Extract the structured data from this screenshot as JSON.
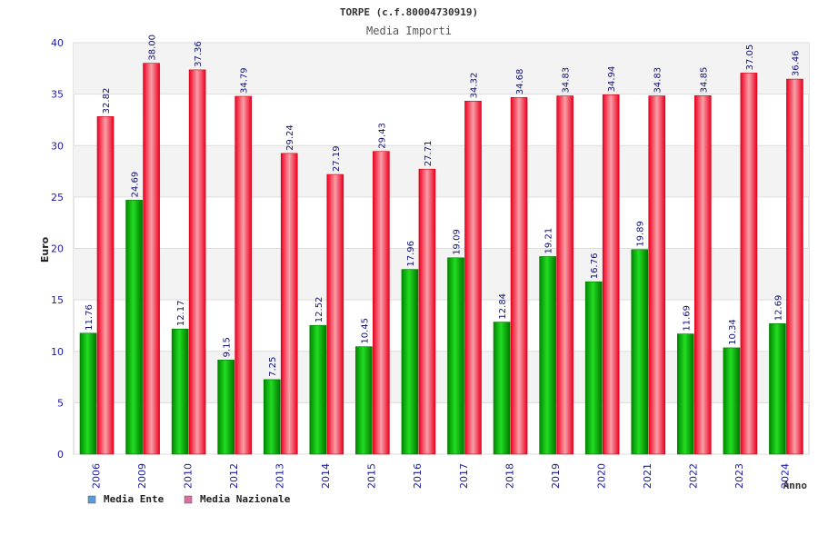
{
  "chart_data": {
    "type": "bar",
    "title": "TORPE (c.f.80004730919)",
    "subtitle": "Media Importi",
    "xlabel": "Anno",
    "ylabel": "Euro",
    "ylim": [
      0,
      40
    ],
    "yticks": [
      "0",
      "5",
      "10",
      "15",
      "20",
      "25",
      "30",
      "35",
      "40"
    ],
    "grid": true,
    "legend_position": "bottom-left",
    "categories": [
      "2006",
      "2009",
      "2010",
      "2012",
      "2013",
      "2014",
      "2015",
      "2016",
      "2017",
      "2018",
      "2019",
      "2020",
      "2021",
      "2022",
      "2023",
      "2024"
    ],
    "series": [
      {
        "name": "Media Ente",
        "color": "#00b400",
        "legend_color": "#5b9bd5",
        "values": [
          11.76,
          24.69,
          12.17,
          9.15,
          7.25,
          12.52,
          10.45,
          17.96,
          19.09,
          12.84,
          19.21,
          16.76,
          19.89,
          11.69,
          10.34,
          12.69
        ]
      },
      {
        "name": "Media Nazionale",
        "color": "#ee1122",
        "legend_color": "#d96fa0",
        "values": [
          32.82,
          38.0,
          37.36,
          34.79,
          29.24,
          27.19,
          29.43,
          27.71,
          34.32,
          34.68,
          34.83,
          34.94,
          34.83,
          34.85,
          37.05,
          36.46
        ]
      }
    ]
  }
}
